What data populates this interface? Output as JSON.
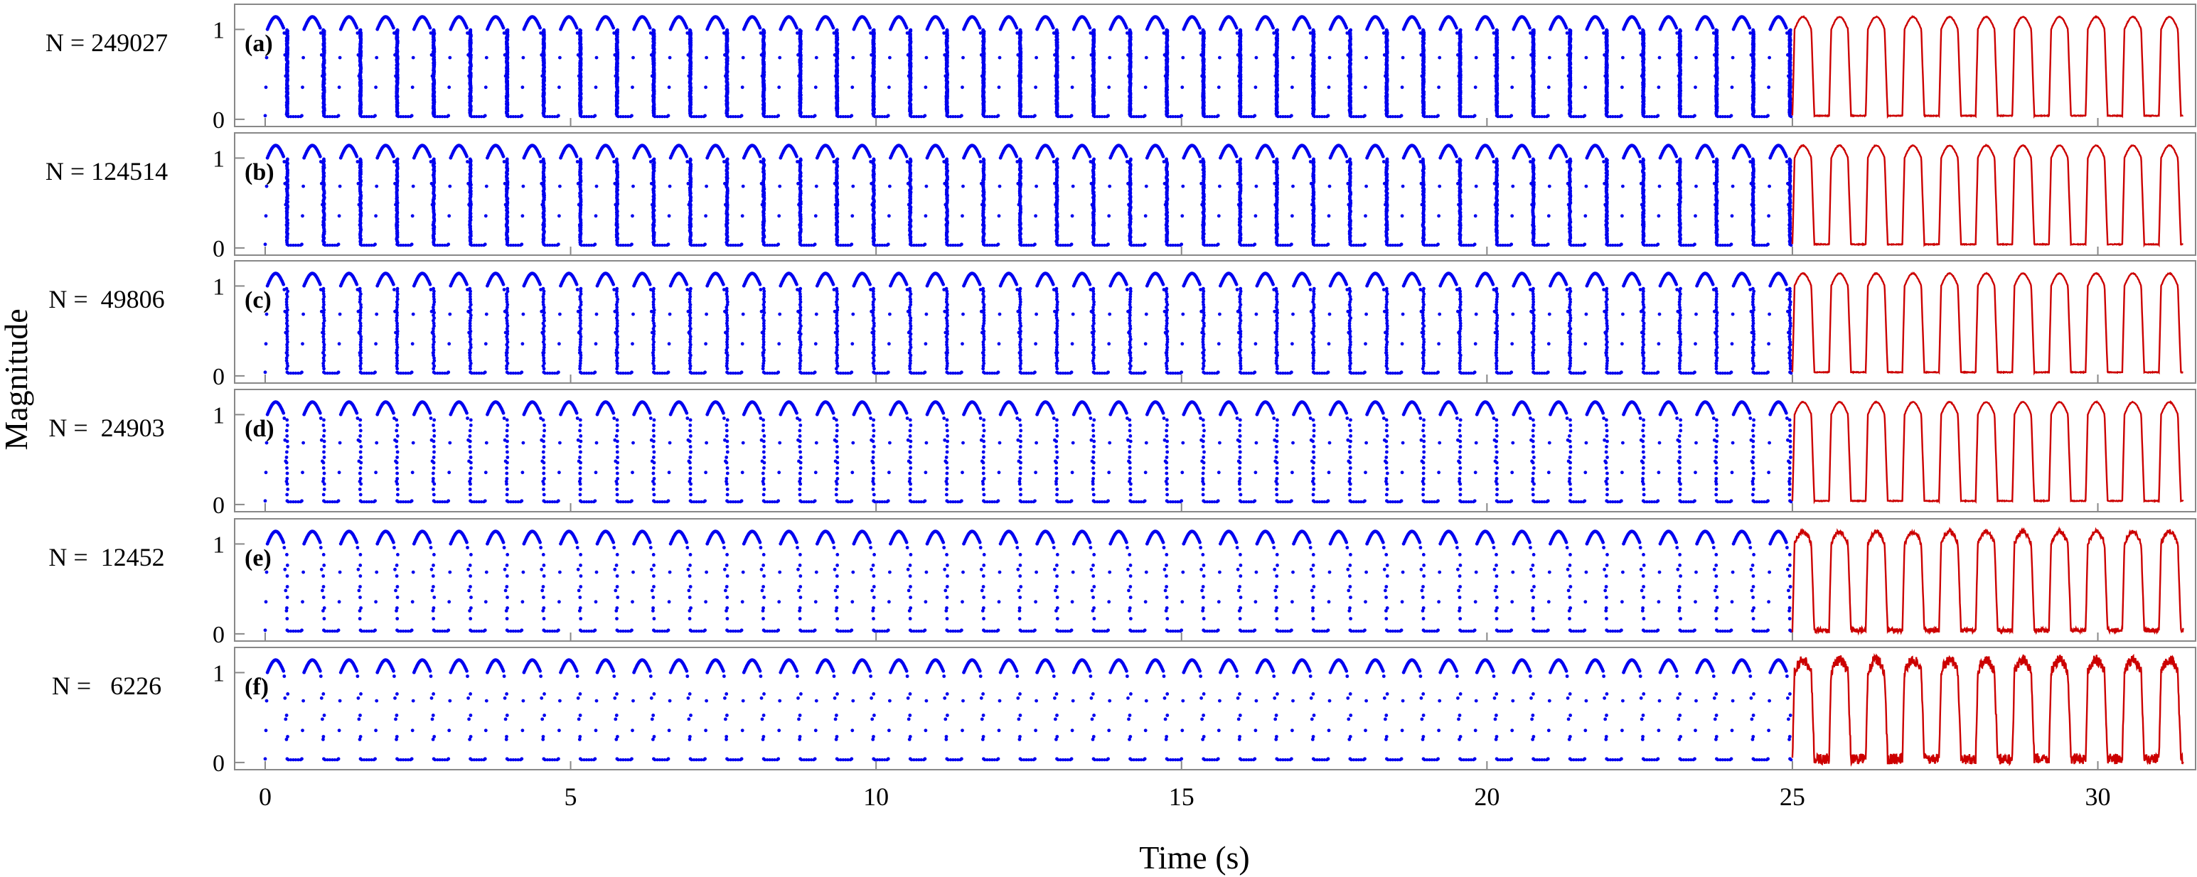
{
  "chart_data": {
    "type": "line",
    "title": "",
    "xlabel": "Time (s)",
    "ylabel": "Magnitude",
    "xlim": [
      -0.5,
      31.6
    ],
    "xticks": [
      0,
      5,
      10,
      15,
      20,
      25,
      30
    ],
    "xtick_labels": [
      "0",
      "5",
      "10",
      "15",
      "20",
      "25",
      "30"
    ],
    "ylim": [
      -0.08,
      1.28
    ],
    "yticks": [
      0,
      1
    ],
    "ytick_labels": [
      "0",
      "1"
    ],
    "grid": false,
    "split_time": 25,
    "period": 0.6,
    "pulse_width": 0.36,
    "series_colors": {
      "sampled": "#0000ee",
      "predicted": "#cc0000"
    },
    "panels": [
      {
        "tag": "(a)",
        "row_label": "N = 249027",
        "N": 249027
      },
      {
        "tag": "(b)",
        "row_label": "N = 124514",
        "N": 124514
      },
      {
        "tag": "(c)",
        "row_label": "N =  49806",
        "N": 49806
      },
      {
        "tag": "(d)",
        "row_label": "N =  24903",
        "N": 24903
      },
      {
        "tag": "(e)",
        "row_label": "N =  12452",
        "N": 12452
      },
      {
        "tag": "(f)",
        "row_label": "N =   6226",
        "N": 6226
      }
    ]
  }
}
